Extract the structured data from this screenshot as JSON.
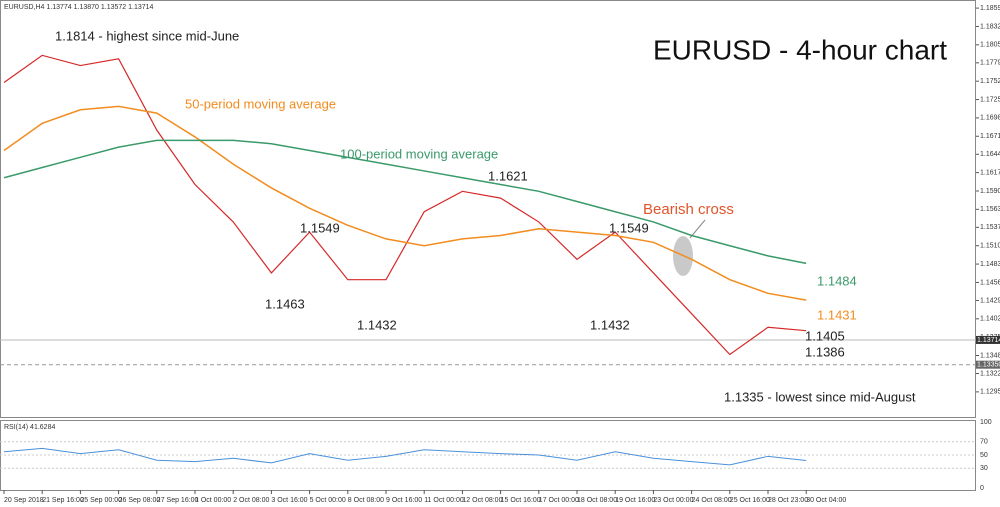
{
  "chart_data": {
    "type": "line",
    "title": "EURUSD - 4-hour chart",
    "header": "EURUSD,H4 1.13774 1.13870 1.13572 1.13714",
    "categories": [
      "20 Sep 2018",
      "21 Sep 16:00",
      "25 Sep 00:00",
      "26 Sep 08:00",
      "27 Sep 16:00",
      "1 Oct 00:00",
      "2 Oct 08:00",
      "3 Oct 16:00",
      "5 Oct 00:00",
      "8 Oct 08:00",
      "9 Oct 16:00",
      "11 Oct 00:00",
      "12 Oct 08:00",
      "15 Oct 16:00",
      "17 Oct 00:00",
      "18 Oct 08:00",
      "19 Oct 16:00",
      "23 Oct 00:00",
      "24 Oct 08:00",
      "25 Oct 16:00",
      "28 Oct 23:00",
      "30 Oct 04:00"
    ],
    "series": [
      {
        "color": "#d62828",
        "values": [
          1.175,
          1.179,
          1.1775,
          1.1785,
          1.168,
          1.16,
          1.1545,
          1.147,
          1.153,
          1.146,
          1.146,
          1.156,
          1.159,
          1.158,
          1.1545,
          1.149,
          1.153,
          1.147,
          1.141,
          1.135,
          1.139,
          1.1385
        ]
      },
      {
        "color": "#f28c1e",
        "values": [
          1.165,
          1.169,
          1.171,
          1.1715,
          1.1705,
          1.167,
          1.163,
          1.1595,
          1.1565,
          1.154,
          1.152,
          1.151,
          1.152,
          1.1525,
          1.1535,
          1.153,
          1.1525,
          1.1515,
          1.149,
          1.146,
          1.144,
          1.143
        ]
      },
      {
        "color": "#3a9a6a",
        "values": [
          1.161,
          1.1625,
          1.164,
          1.1655,
          1.1665,
          1.1665,
          1.1665,
          1.166,
          1.165,
          1.164,
          1.163,
          1.162,
          1.161,
          1.16,
          1.159,
          1.1575,
          1.156,
          1.1545,
          1.1525,
          1.151,
          1.1495,
          1.1484
        ]
      }
    ],
    "ylim": [
      1.1261,
      1.1867
    ],
    "yticks": [
      1.18595,
      1.18325,
      1.18055,
      {
        "value": 1.1779,
        "label": "1.17790"
      },
      {
        "value": 1.1752,
        "label": "1.17520"
      },
      {
        "value": 1.1725,
        "label": "1.17250"
      },
      {
        "value": 1.1698,
        "label": "1.16980"
      },
      {
        "value": 1.1671,
        "label": "1.16710"
      },
      1.16445,
      1.16175,
      1.15905,
      1.15635,
      {
        "value": 1.1537,
        "label": "1.15370"
      },
      {
        "value": 1.151,
        "label": "1.15100"
      },
      {
        "value": 1.1483,
        "label": "1.14830"
      },
      {
        "value": 1.1456,
        "label": "1.14560"
      },
      1.14295,
      1.14025,
      1.13755,
      1.13485,
      {
        "value": 1.1322,
        "label": "1.13220"
      },
      {
        "value": 1.1295,
        "label": "1.12950"
      }
    ],
    "current_price": 1.13714,
    "support_level": {
      "value": 1.1335,
      "label": "1.13350"
    },
    "annotations": [
      {
        "text": "1.1814 - highest since mid-June",
        "color": "#222222"
      },
      {
        "text": "50-period moving average",
        "color": "#f28c1e"
      },
      {
        "text": "100-period moving average",
        "color": "#3a9a6a"
      },
      {
        "text": "1.1621",
        "color": "#222222"
      },
      {
        "text": "1.1549",
        "color": "#222222"
      },
      {
        "text": "1.1463",
        "color": "#222222"
      },
      {
        "text": "1.1432",
        "color": "#222222"
      },
      {
        "text": "1.1549",
        "color": "#222222"
      },
      {
        "text": "1.1432",
        "color": "#222222"
      },
      {
        "text": "Bearish cross",
        "color": "#e0562a"
      },
      {
        "text": "1.1484",
        "color": "#3a9a6a"
      },
      {
        "text": "1.1431",
        "color": "#f28c1e"
      },
      {
        "text": "1.1405",
        "color": "#222222"
      },
      {
        "text": "1.1386",
        "color": "#222222"
      },
      {
        "text": "1.1335  - lowest since mid-August",
        "color": "#222222"
      }
    ],
    "rsi": {
      "label": "RSI(14) 41.6284",
      "color": "#4a90d9",
      "values": [
        55,
        60,
        52,
        58,
        42,
        40,
        45,
        38,
        52,
        42,
        48,
        58,
        55,
        52,
        50,
        42,
        55,
        45,
        40,
        35,
        48,
        41.6284
      ],
      "ylim": [
        0,
        100
      ],
      "yticks": [
        100,
        70,
        50,
        30,
        0
      ]
    }
  }
}
